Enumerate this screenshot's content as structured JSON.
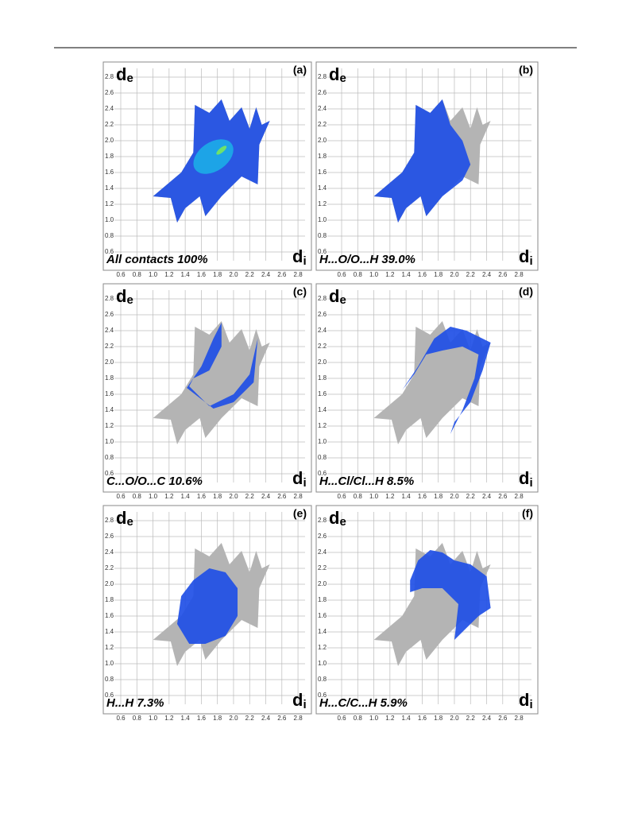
{
  "figure": {
    "axis": {
      "y": "d",
      "y_sub": "e",
      "x": "d",
      "x_sub": "i"
    },
    "ticks": [
      "0.6",
      "0.8",
      "1.0",
      "1.2",
      "1.4",
      "1.6",
      "1.8",
      "2.0",
      "2.2",
      "2.4",
      "2.6",
      "2.8"
    ],
    "panels": [
      {
        "label": "(a)",
        "caption": "All contacts 100%"
      },
      {
        "label": "(b)",
        "caption": "H...O/O...H 39.0%"
      },
      {
        "label": "(c)",
        "caption": "C...O/O...C 10.6%"
      },
      {
        "label": "(d)",
        "caption": "H...Cl/Cl...H 8.5%"
      },
      {
        "label": "(e)",
        "caption": "H...H 7.3%"
      },
      {
        "label": "(f)",
        "caption": "H...C/C...H 5.9%"
      }
    ]
  }
}
